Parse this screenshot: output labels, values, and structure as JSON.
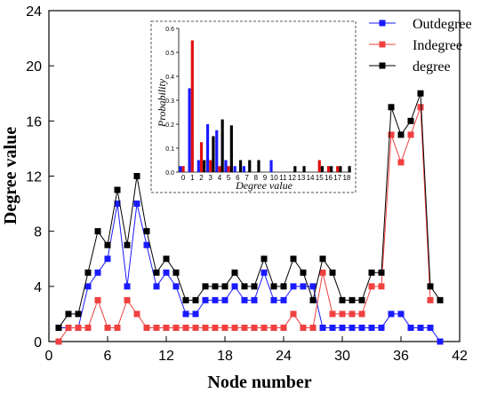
{
  "chart_data": [
    {
      "type": "line",
      "xlabel": "Node number",
      "ylabel": "Degree value",
      "xlim": [
        0,
        42
      ],
      "ylim": [
        0,
        24
      ],
      "x_ticks": [
        "0",
        "6",
        "12",
        "18",
        "24",
        "30",
        "36",
        "42"
      ],
      "y_ticks": [
        "0",
        "4",
        "8",
        "12",
        "16",
        "20",
        "24"
      ],
      "legend_position": "top-right",
      "x": [
        1,
        2,
        3,
        4,
        5,
        6,
        7,
        8,
        9,
        10,
        11,
        12,
        13,
        14,
        15,
        16,
        17,
        18,
        19,
        20,
        21,
        22,
        23,
        24,
        25,
        26,
        27,
        28,
        29,
        30,
        31,
        32,
        33,
        34,
        35,
        36,
        37,
        38,
        39,
        40
      ],
      "series": [
        {
          "name": "Outdegree",
          "color": "#1a1aff",
          "values": [
            1,
            1,
            1,
            4,
            5,
            6,
            10,
            4,
            10,
            7,
            4,
            5,
            4,
            2,
            2,
            3,
            3,
            3,
            4,
            3,
            3,
            5,
            3,
            3,
            4,
            4,
            4,
            1,
            1,
            1,
            1,
            1,
            1,
            1,
            2,
            2,
            1,
            1,
            1,
            0
          ]
        },
        {
          "name": "Indegree",
          "color": "#f04040",
          "values": [
            0,
            1,
            1,
            1,
            3,
            1,
            1,
            3,
            2,
            1,
            1,
            1,
            1,
            1,
            1,
            1,
            1,
            1,
            1,
            1,
            1,
            1,
            1,
            1,
            2,
            1,
            1,
            5,
            2,
            2,
            2,
            2,
            4,
            4,
            15,
            13,
            15,
            17,
            3,
            null
          ]
        },
        {
          "name": "degree",
          "color": "#000000",
          "values": [
            1,
            2,
            2,
            5,
            8,
            7,
            11,
            7,
            12,
            8,
            5,
            6,
            5,
            3,
            3,
            4,
            4,
            4,
            5,
            4,
            4,
            6,
            4,
            4,
            6,
            5,
            3,
            6,
            5,
            3,
            3,
            3,
            5,
            5,
            17,
            15,
            16,
            18,
            4,
            3
          ]
        }
      ]
    },
    {
      "type": "bar",
      "title": "",
      "xlabel": "Degree value",
      "ylabel": "Probability",
      "ylim": [
        0,
        0.6
      ],
      "y_ticks": [
        "0.0",
        "0.1",
        "0.2",
        "0.3",
        "0.4",
        "0.5",
        "0.6"
      ],
      "categories": [
        "0",
        "1",
        "2",
        "3",
        "4",
        "5",
        "6",
        "7",
        "8",
        "9",
        "10",
        "11",
        "12",
        "13",
        "14",
        "15",
        "16",
        "17",
        "18"
      ],
      "series": [
        {
          "name": "Outdegree",
          "color": "#1a1aff",
          "values": [
            0.025,
            0.35,
            0.05,
            0.2,
            0.175,
            0.05,
            0.025,
            0.025,
            0,
            0,
            0.05,
            0,
            0,
            0,
            0,
            0,
            0,
            0,
            0
          ]
        },
        {
          "name": "Indegree",
          "color": "#e01010",
          "values": [
            0.025,
            0.55,
            0.125,
            0.05,
            0.025,
            0.025,
            0,
            0,
            0,
            0,
            0,
            0,
            0,
            0,
            0,
            0.05,
            0.025,
            0.025,
            0
          ]
        },
        {
          "name": "degree",
          "color": "#000000",
          "values": [
            0,
            0,
            0.05,
            0.15,
            0.22,
            0.195,
            0.05,
            0.05,
            0.05,
            0,
            0,
            0,
            0.025,
            0.025,
            0,
            0.025,
            0.025,
            0.025,
            0.025
          ]
        }
      ]
    }
  ]
}
